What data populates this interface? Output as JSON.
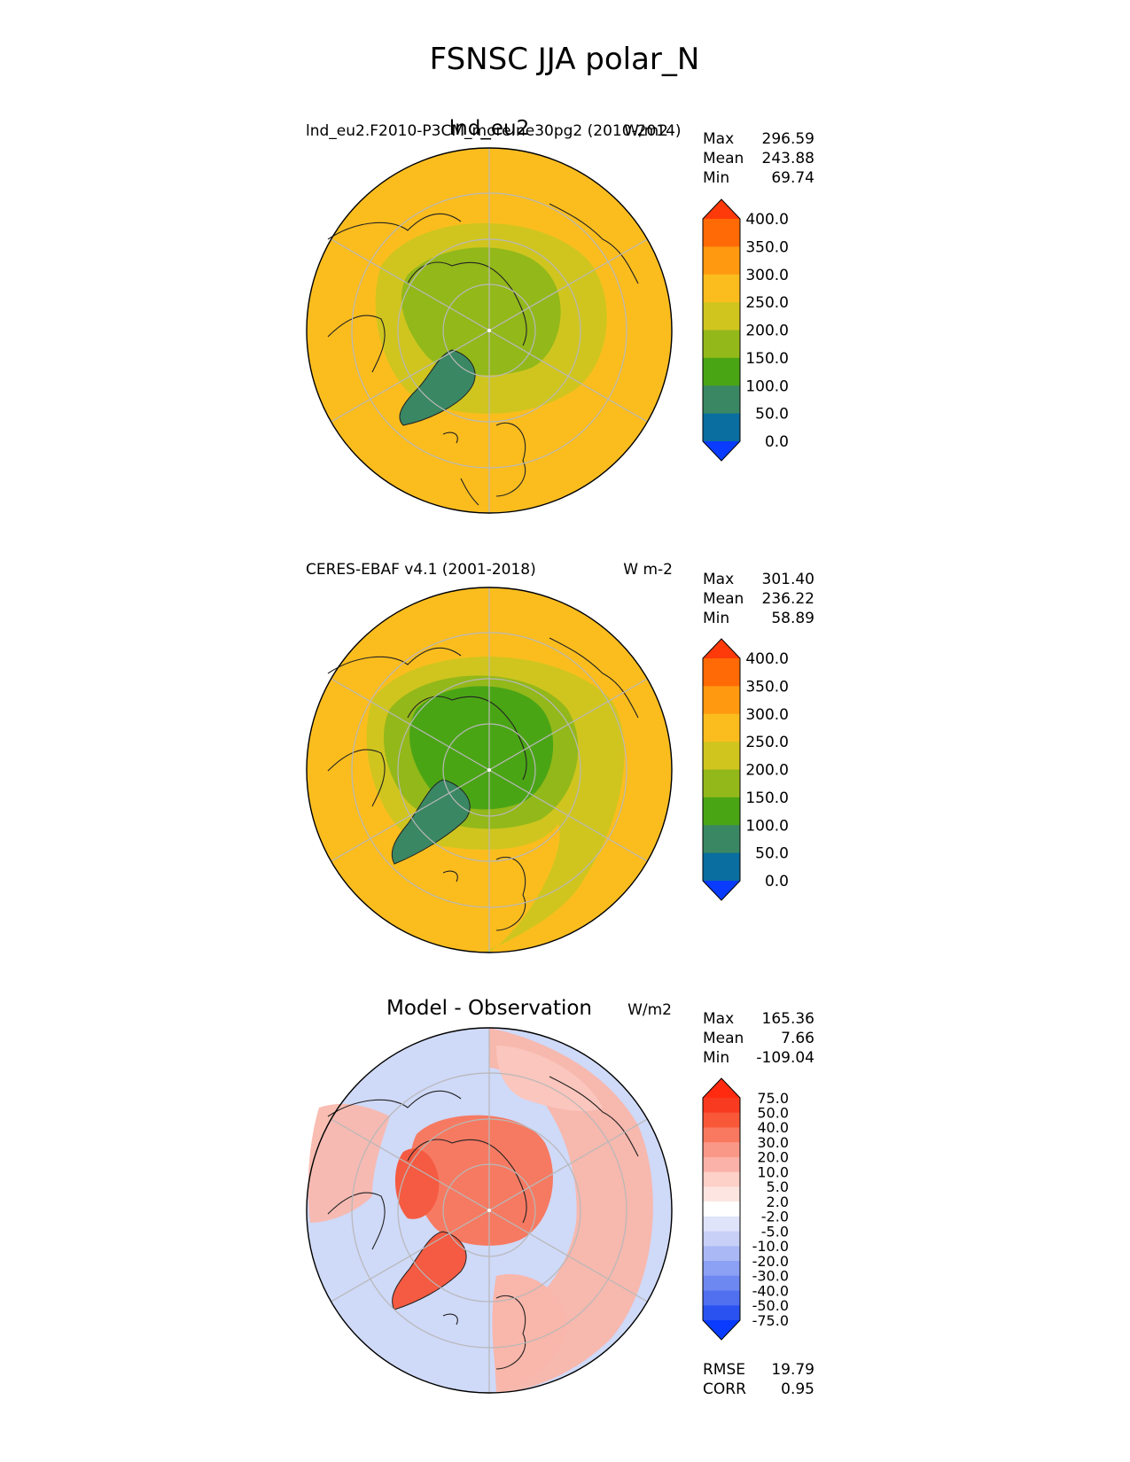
{
  "figure_title": "FSNSC JJA polar_N",
  "panels": [
    {
      "name": "test",
      "center_title": "lnd_eu2",
      "left_title": "lnd_eu2.F2010-P3CM_more.ne30pg2 (2010-2014)",
      "units": "W/m2",
      "stats": [
        {
          "label": "Max",
          "value": "296.59"
        },
        {
          "label": "Mean",
          "value": "243.88"
        },
        {
          "label": "Min",
          "value": "69.74"
        }
      ]
    },
    {
      "name": "reference",
      "center_title": "",
      "left_title": "CERES-EBAF v4.1 (2001-2018)",
      "units": "W m-2",
      "stats": [
        {
          "label": "Max",
          "value": "301.40"
        },
        {
          "label": "Mean",
          "value": "236.22"
        },
        {
          "label": "Min",
          "value": "58.89"
        }
      ]
    },
    {
      "name": "difference",
      "center_title": "Model - Observation",
      "left_title": "",
      "units": "W/m2",
      "stats": [
        {
          "label": "Max",
          "value": "165.36"
        },
        {
          "label": "Mean",
          "value": "7.66"
        },
        {
          "label": "Min",
          "value": "-109.04"
        }
      ],
      "footer_stats": [
        {
          "label": "RMSE",
          "value": "19.79"
        },
        {
          "label": "CORR",
          "value": "0.95"
        }
      ]
    }
  ],
  "colorbars": {
    "sequential": {
      "tick_labels": [
        "400.0",
        "350.0",
        "300.0",
        "250.0",
        "200.0",
        "150.0",
        "100.0",
        "50.0",
        "0.0"
      ],
      "colors_top_to_bottom": [
        "#ff3a0a",
        "#ff6a06",
        "#ff9a10",
        "#fbbd1e",
        "#d0c51f",
        "#93b81a",
        "#4aa515",
        "#3a8763",
        "#0a6ea0",
        "#0a3cff"
      ]
    },
    "diverging": {
      "tick_labels": [
        "75.0",
        "50.0",
        "40.0",
        "30.0",
        "20.0",
        "10.0",
        "5.0",
        "2.0",
        "-2.0",
        "-5.0",
        "-10.0",
        "-20.0",
        "-30.0",
        "-40.0",
        "-50.0",
        "-75.0"
      ],
      "colors_top_to_bottom": [
        "#ff2a10",
        "#f83a20",
        "#f85838",
        "#f87860",
        "#fa9888",
        "#fbb2a8",
        "#fdd0c8",
        "#fde6e2",
        "#ffffff",
        "#dfe4fb",
        "#c8d0f8",
        "#aab8f6",
        "#8ca0f4",
        "#6e88f2",
        "#5070f0",
        "#2a52f0",
        "#0a3cff"
      ]
    }
  },
  "map_colors": {
    "ocean_fill": "#fbbd1e",
    "mid_ring": "#d0c51f",
    "arctic_test": "#93b81a",
    "arctic_ref": "#4aa515",
    "greenland": "#3a8763",
    "diff_cool": "#cfd9f8",
    "diff_warm": "#f9b6aa",
    "diff_hot": "#f45b42"
  }
}
